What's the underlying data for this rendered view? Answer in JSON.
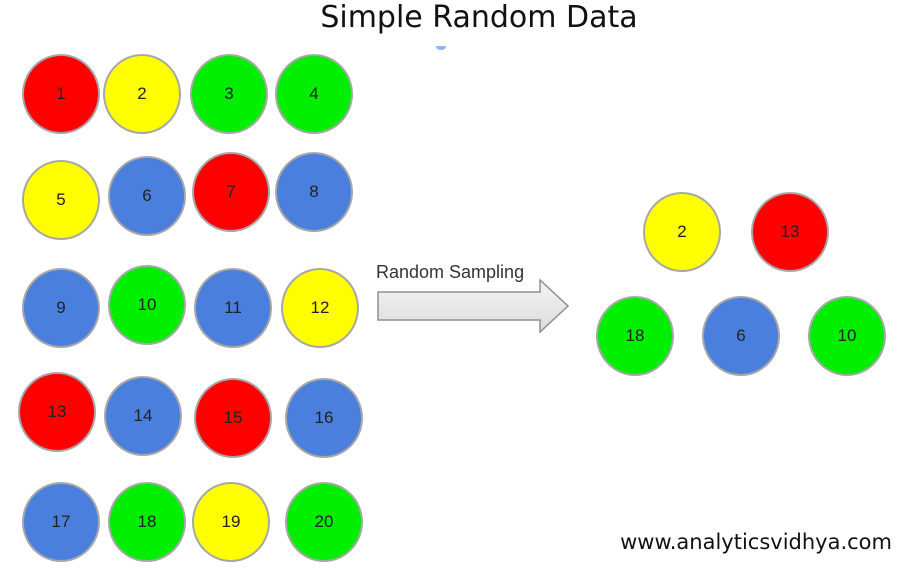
{
  "title": "Simple Random Data",
  "colors": {
    "red": "#ff0000",
    "yellow": "#ffff00",
    "green": "#00ee00",
    "blue": "#4a7fde"
  },
  "population": [
    {
      "label": "1",
      "color": "red"
    },
    {
      "label": "2",
      "color": "yellow"
    },
    {
      "label": "3",
      "color": "green"
    },
    {
      "label": "4",
      "color": "green"
    },
    {
      "label": "5",
      "color": "yellow"
    },
    {
      "label": "6",
      "color": "blue"
    },
    {
      "label": "7",
      "color": "red"
    },
    {
      "label": "8",
      "color": "blue"
    },
    {
      "label": "9",
      "color": "blue"
    },
    {
      "label": "10",
      "color": "green"
    },
    {
      "label": "11",
      "color": "blue"
    },
    {
      "label": "12",
      "color": "yellow"
    },
    {
      "label": "13",
      "color": "red"
    },
    {
      "label": "14",
      "color": "blue"
    },
    {
      "label": "15",
      "color": "red"
    },
    {
      "label": "16",
      "color": "blue"
    },
    {
      "label": "17",
      "color": "blue"
    },
    {
      "label": "18",
      "color": "green"
    },
    {
      "label": "19",
      "color": "yellow"
    },
    {
      "label": "20",
      "color": "green"
    }
  ],
  "arrow_label": "Random Sampling",
  "sample": [
    {
      "label": "2",
      "color": "yellow"
    },
    {
      "label": "13",
      "color": "red"
    },
    {
      "label": "18",
      "color": "green"
    },
    {
      "label": "6",
      "color": "blue"
    },
    {
      "label": "10",
      "color": "green"
    }
  ],
  "watermark": "www.analyticsvidhya.com"
}
